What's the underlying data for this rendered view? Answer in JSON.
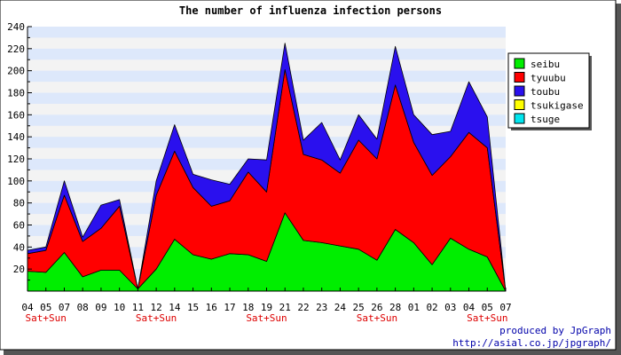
{
  "chart_data": {
    "type": "area",
    "stacked": true,
    "title": "The number of influenza infection persons",
    "xlabel": "",
    "ylabel": "",
    "ylim": [
      0,
      240
    ],
    "yticks": [
      20,
      40,
      60,
      80,
      100,
      120,
      140,
      160,
      180,
      200,
      220,
      240
    ],
    "grid": "horizontal alternating bands",
    "legend_position": "right",
    "categories": [
      "04",
      "05",
      "07",
      "08",
      "09",
      "10",
      "11",
      "12",
      "14",
      "15",
      "16",
      "17",
      "18",
      "19",
      "21",
      "22",
      "23",
      "24",
      "25",
      "26",
      "28",
      "01",
      "02",
      "03",
      "04",
      "05",
      "07"
    ],
    "weekend_marks": [
      {
        "index": 1,
        "label": "Sat+Sun"
      },
      {
        "index": 7,
        "label": "Sat+Sun"
      },
      {
        "index": 13,
        "label": "Sat+Sun"
      },
      {
        "index": 19,
        "label": "Sat+Sun"
      },
      {
        "index": 25,
        "label": "Sat+Sun"
      }
    ],
    "series": [
      {
        "name": "seibu",
        "color": "#00ee00",
        "values": [
          18,
          17,
          35,
          13,
          19,
          19,
          2,
          20,
          47,
          33,
          29,
          34,
          33,
          27,
          71,
          46,
          44,
          41,
          38,
          28,
          56,
          44,
          24,
          48,
          38,
          31,
          0
        ]
      },
      {
        "name": "tyuubu",
        "color": "#ff0000",
        "values": [
          16,
          20,
          52,
          32,
          38,
          58,
          0,
          67,
          80,
          61,
          48,
          48,
          75,
          63,
          130,
          78,
          75,
          66,
          99,
          92,
          131,
          91,
          81,
          74,
          106,
          99,
          0
        ]
      },
      {
        "name": "toubu",
        "color": "#2a10ee",
        "values": [
          3,
          3,
          13,
          4,
          21,
          6,
          0,
          13,
          24,
          12,
          24,
          15,
          12,
          29,
          24,
          13,
          34,
          12,
          23,
          18,
          35,
          25,
          37,
          23,
          46,
          28,
          0
        ]
      },
      {
        "name": "tsukigase",
        "color": "#ffff00",
        "values": [
          0,
          0,
          0,
          0,
          0,
          0,
          0,
          0,
          0,
          0,
          0,
          0,
          0,
          0,
          0,
          0,
          0,
          0,
          0,
          0,
          0,
          0,
          0,
          0,
          0,
          0,
          0
        ]
      },
      {
        "name": "tsuge",
        "color": "#00e5ee",
        "values": [
          0,
          0,
          0,
          0,
          0,
          0,
          0,
          0,
          0,
          0,
          0,
          0,
          0,
          0,
          0,
          0,
          0,
          0,
          0,
          0,
          0,
          0,
          0,
          0,
          0,
          0,
          0
        ]
      }
    ]
  },
  "credits": {
    "line1": "produced by JpGraph",
    "line2": "http://asial.co.jp/jpgraph/"
  },
  "colors": {
    "band_light": "#f3f3f3",
    "band_blue": "#dde8fb",
    "weekend_label": "#dd0000",
    "credit_text": "#0000aa",
    "frame_shadow": "#444444"
  }
}
